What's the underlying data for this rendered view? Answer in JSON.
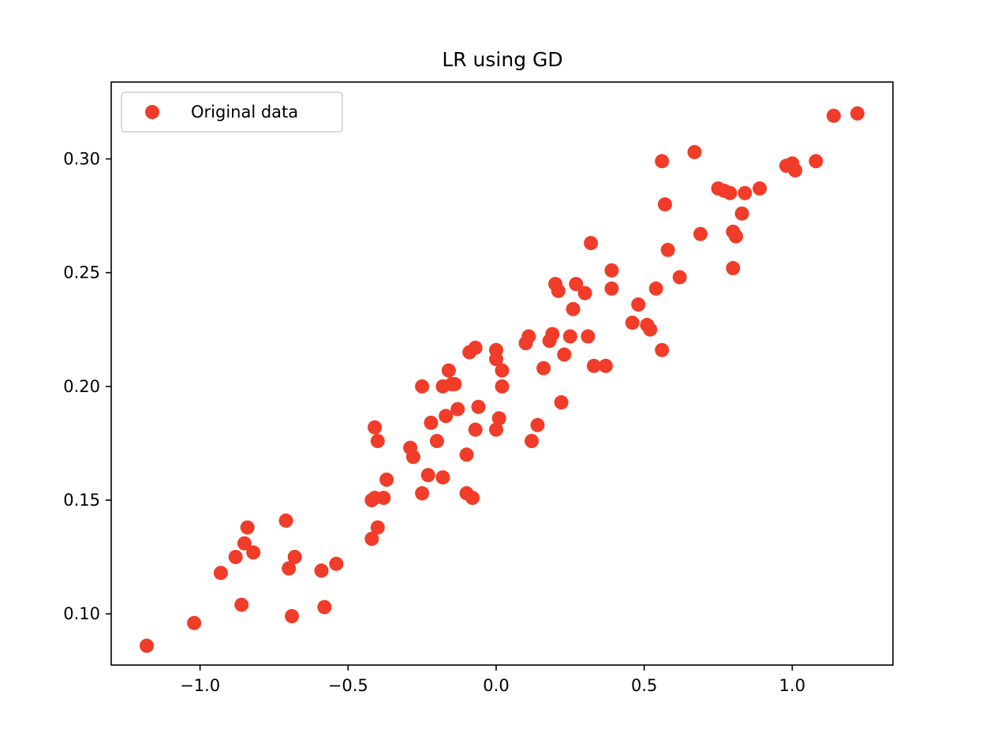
{
  "chart_data": {
    "type": "scatter",
    "title": "LR using GD",
    "xlabel": "",
    "ylabel": "",
    "xlim": [
      -1.3,
      1.34
    ],
    "ylim": [
      0.0775,
      0.3338
    ],
    "x_ticks": [
      -1.0,
      -0.5,
      0.0,
      0.5,
      1.0
    ],
    "x_tick_labels": [
      "−1.0",
      "−0.5",
      "0.0",
      "0.5",
      "1.0"
    ],
    "y_ticks": [
      0.1,
      0.15,
      0.2,
      0.25,
      0.3
    ],
    "y_tick_labels": [
      "0.10",
      "0.15",
      "0.20",
      "0.25",
      "0.30"
    ],
    "grid": false,
    "legend_position": "upper left",
    "series": [
      {
        "name": "Original data",
        "color": "#f03c28",
        "marker": "circle",
        "points": [
          [
            -1.18,
            0.086
          ],
          [
            -1.02,
            0.096
          ],
          [
            -0.93,
            0.118
          ],
          [
            -0.88,
            0.125
          ],
          [
            -0.86,
            0.104
          ],
          [
            -0.85,
            0.131
          ],
          [
            -0.84,
            0.138
          ],
          [
            -0.82,
            0.127
          ],
          [
            -0.71,
            0.141
          ],
          [
            -0.7,
            0.12
          ],
          [
            -0.69,
            0.099
          ],
          [
            -0.68,
            0.125
          ],
          [
            -0.59,
            0.119
          ],
          [
            -0.58,
            0.103
          ],
          [
            -0.54,
            0.122
          ],
          [
            -0.42,
            0.133
          ],
          [
            -0.42,
            0.15
          ],
          [
            -0.41,
            0.151
          ],
          [
            -0.4,
            0.138
          ],
          [
            -0.41,
            0.182
          ],
          [
            -0.4,
            0.176
          ],
          [
            -0.38,
            0.151
          ],
          [
            -0.37,
            0.159
          ],
          [
            -0.29,
            0.173
          ],
          [
            -0.28,
            0.169
          ],
          [
            -0.25,
            0.153
          ],
          [
            -0.25,
            0.2
          ],
          [
            -0.23,
            0.161
          ],
          [
            -0.22,
            0.184
          ],
          [
            -0.2,
            0.176
          ],
          [
            -0.18,
            0.16
          ],
          [
            -0.18,
            0.2
          ],
          [
            -0.17,
            0.187
          ],
          [
            -0.16,
            0.207
          ],
          [
            -0.15,
            0.201
          ],
          [
            -0.14,
            0.201
          ],
          [
            -0.13,
            0.19
          ],
          [
            -0.1,
            0.17
          ],
          [
            -0.1,
            0.153
          ],
          [
            -0.09,
            0.215
          ],
          [
            -0.08,
            0.151
          ],
          [
            -0.07,
            0.181
          ],
          [
            -0.07,
            0.217
          ],
          [
            -0.06,
            0.191
          ],
          [
            0.0,
            0.216
          ],
          [
            0.0,
            0.212
          ],
          [
            0.0,
            0.181
          ],
          [
            0.01,
            0.186
          ],
          [
            0.02,
            0.2
          ],
          [
            0.02,
            0.207
          ],
          [
            0.1,
            0.219
          ],
          [
            0.11,
            0.222
          ],
          [
            0.12,
            0.176
          ],
          [
            0.14,
            0.183
          ],
          [
            0.16,
            0.208
          ],
          [
            0.18,
            0.22
          ],
          [
            0.19,
            0.223
          ],
          [
            0.2,
            0.245
          ],
          [
            0.21,
            0.242
          ],
          [
            0.22,
            0.193
          ],
          [
            0.23,
            0.214
          ],
          [
            0.25,
            0.222
          ],
          [
            0.26,
            0.234
          ],
          [
            0.27,
            0.245
          ],
          [
            0.3,
            0.241
          ],
          [
            0.31,
            0.222
          ],
          [
            0.32,
            0.263
          ],
          [
            0.33,
            0.209
          ],
          [
            0.37,
            0.209
          ],
          [
            0.39,
            0.251
          ],
          [
            0.39,
            0.243
          ],
          [
            0.46,
            0.228
          ],
          [
            0.48,
            0.236
          ],
          [
            0.51,
            0.227
          ],
          [
            0.52,
            0.225
          ],
          [
            0.54,
            0.243
          ],
          [
            0.56,
            0.216
          ],
          [
            0.56,
            0.299
          ],
          [
            0.57,
            0.28
          ],
          [
            0.58,
            0.26
          ],
          [
            0.62,
            0.248
          ],
          [
            0.67,
            0.303
          ],
          [
            0.69,
            0.267
          ],
          [
            0.75,
            0.287
          ],
          [
            0.77,
            0.286
          ],
          [
            0.79,
            0.285
          ],
          [
            0.8,
            0.268
          ],
          [
            0.8,
            0.252
          ],
          [
            0.81,
            0.266
          ],
          [
            0.83,
            0.276
          ],
          [
            0.84,
            0.285
          ],
          [
            0.89,
            0.287
          ],
          [
            0.98,
            0.297
          ],
          [
            1.0,
            0.298
          ],
          [
            1.01,
            0.295
          ],
          [
            1.08,
            0.299
          ],
          [
            1.14,
            0.319
          ],
          [
            1.22,
            0.32
          ]
        ]
      }
    ]
  }
}
